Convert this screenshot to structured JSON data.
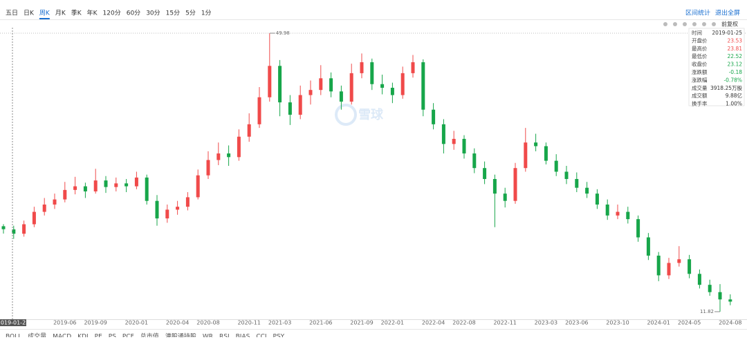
{
  "toolbar": {
    "tabs": [
      "五日",
      "日K",
      "周K",
      "月K",
      "季K",
      "年K",
      "120分",
      "60分",
      "30分",
      "15分",
      "5分",
      "1分"
    ],
    "active_tab": 2,
    "right_links": [
      "区间统计",
      "退出全屏"
    ],
    "adjust": "前复权"
  },
  "indicator_tabs": [
    "BOLL",
    "成交量",
    "MACD",
    "KDJ",
    "PE",
    "PS",
    "PCF",
    "总市值",
    "港股通持股",
    "WR",
    "RSI",
    "BIAS",
    "CCI",
    "PSY"
  ],
  "watermark": "雪球",
  "chart_data": {
    "type": "candlestick",
    "categories": [
      "2019-01-25",
      null,
      null,
      null,
      null,
      null,
      "2019-06",
      null,
      null,
      "2019-09",
      null,
      null,
      null,
      "2020-01",
      null,
      null,
      null,
      "2020-04",
      null,
      null,
      "2020-08",
      null,
      null,
      null,
      "2020-11",
      null,
      null,
      "2021-03",
      null,
      null,
      null,
      "2021-06",
      null,
      null,
      null,
      "2021-09",
      null,
      null,
      "2022-01",
      null,
      null,
      null,
      "2022-04",
      null,
      null,
      "2022-08",
      null,
      null,
      null,
      "2022-11",
      null,
      null,
      null,
      "2023-03",
      null,
      null,
      "2023-06",
      null,
      null,
      null,
      "2023-10",
      null,
      null,
      null,
      "2024-01",
      null,
      null,
      "2024-05",
      null,
      null,
      null,
      "2024-08"
    ],
    "open": [
      23.53,
      23.1,
      22.5,
      23.8,
      25.5,
      26.5,
      27.2,
      28.5,
      29.0,
      28.3,
      29.8,
      28.9,
      29.4,
      29.0,
      30.2,
      27.0,
      24.6,
      25.8,
      26.2,
      27.5,
      30.5,
      32.6,
      33.5,
      33.0,
      35.8,
      37.5,
      41.2,
      45.5,
      40.5,
      38.8,
      41.5,
      42.2,
      43.8,
      42.0,
      40.6,
      44.5,
      46.0,
      43.0,
      42.5,
      41.5,
      44.5,
      46.0,
      39.5,
      37.5,
      34.8,
      35.5,
      33.5,
      31.5,
      30.0,
      28.0,
      27.0,
      31.5,
      35.0,
      34.5,
      32.5,
      31.0,
      30.0,
      28.8,
      28.0,
      26.5,
      25.0,
      25.5,
      24.5,
      22.0,
      19.5,
      16.8,
      18.5,
      19.0,
      17.0,
      15.5,
      14.5,
      13.5
    ],
    "high": [
      23.81,
      23.6,
      24.3,
      26.2,
      27.4,
      28.0,
      29.6,
      30.3,
      29.5,
      31.4,
      30.4,
      30.2,
      30.0,
      31.0,
      30.6,
      27.8,
      26.5,
      27.0,
      28.2,
      31.3,
      33.8,
      35.0,
      34.6,
      36.8,
      39.0,
      42.6,
      49.98,
      46.3,
      41.5,
      42.8,
      43.5,
      45.6,
      44.6,
      42.8,
      45.8,
      47.2,
      46.5,
      44.3,
      43.2,
      45.4,
      47.0,
      46.4,
      40.4,
      38.2,
      36.6,
      36.0,
      34.2,
      32.4,
      30.6,
      28.8,
      32.2,
      37.0,
      36.2,
      35.0,
      33.4,
      31.8,
      30.9,
      29.6,
      28.6,
      27.2,
      26.5,
      26.2,
      25.0,
      22.6,
      20.0,
      19.2,
      20.8,
      19.6,
      17.6,
      16.2,
      15.6,
      14.2
    ],
    "low": [
      22.52,
      21.8,
      22.1,
      23.4,
      25.0,
      25.9,
      26.8,
      27.9,
      27.4,
      28.0,
      28.1,
      28.3,
      28.2,
      28.6,
      26.5,
      23.6,
      24.0,
      25.1,
      25.7,
      27.2,
      30.0,
      31.9,
      31.8,
      32.5,
      35.1,
      37.0,
      40.6,
      38.6,
      37.4,
      38.2,
      40.2,
      41.5,
      41.2,
      39.5,
      40.2,
      43.8,
      42.2,
      41.6,
      40.4,
      41.0,
      43.9,
      38.6,
      36.8,
      33.5,
      34.0,
      32.8,
      30.8,
      29.3,
      23.4,
      26.1,
      26.6,
      31.0,
      33.8,
      32.0,
      30.4,
      29.3,
      28.2,
      27.4,
      25.9,
      24.4,
      24.5,
      23.9,
      21.4,
      18.9,
      16.0,
      16.3,
      18.0,
      16.4,
      15.0,
      14.0,
      11.82,
      12.7
    ],
    "close": [
      23.12,
      22.5,
      23.8,
      25.5,
      26.5,
      27.2,
      28.5,
      29.0,
      28.3,
      29.8,
      28.9,
      29.4,
      29.0,
      30.2,
      27.0,
      24.6,
      25.8,
      26.2,
      27.5,
      30.5,
      32.6,
      33.5,
      33.0,
      35.8,
      37.5,
      41.2,
      45.5,
      40.5,
      38.8,
      41.5,
      42.2,
      43.8,
      42.0,
      40.6,
      44.5,
      46.0,
      43.0,
      42.5,
      41.5,
      44.5,
      46.0,
      39.5,
      37.5,
      34.8,
      35.5,
      33.5,
      31.5,
      30.0,
      28.0,
      27.0,
      31.5,
      35.0,
      34.5,
      32.5,
      31.0,
      30.0,
      28.8,
      28.0,
      26.5,
      25.0,
      25.5,
      24.5,
      22.0,
      19.5,
      16.8,
      18.5,
      19.0,
      17.0,
      15.5,
      14.5,
      13.5,
      13.2
    ],
    "up_color": "#f04a4a",
    "down_color": "#17a64a",
    "ylim": [
      10.78,
      50.74
    ],
    "max_index": 26,
    "min_index": 70,
    "tooltip": {
      "labels": [
        "时间",
        "开盘价",
        "最高价",
        "最低价",
        "收盘价",
        "涨跌额",
        "涨跌幅",
        "成交量",
        "成交额",
        "换手率"
      ],
      "change": "-0.18",
      "change_pct": "-0.78%",
      "volume": "3918.25万股",
      "amount": "9.88亿",
      "turnover": "1.00%"
    }
  }
}
